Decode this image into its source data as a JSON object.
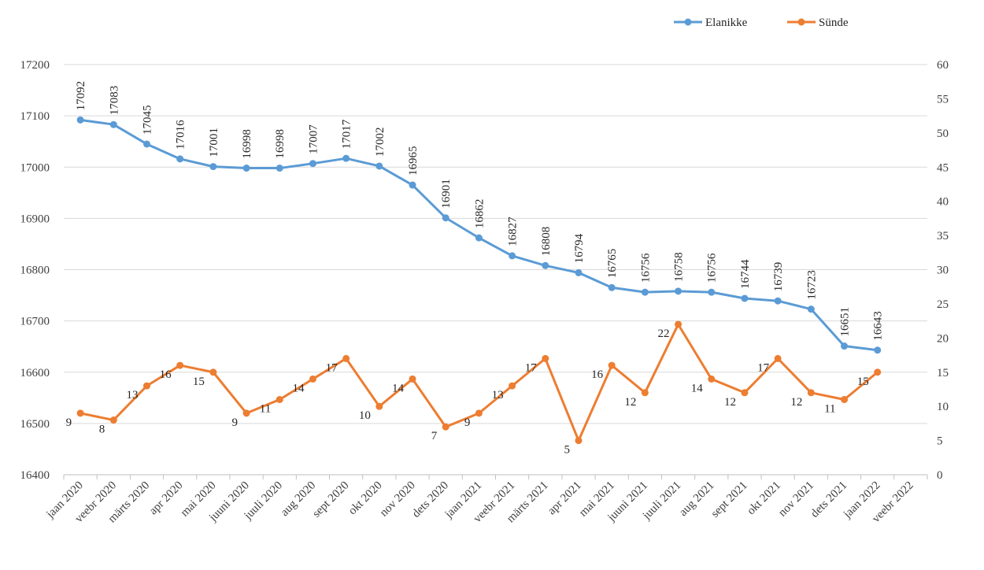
{
  "chart_data": {
    "type": "line",
    "categories": [
      "jaan 2020",
      "veebr 2020",
      "märts 2020",
      "apr 2020",
      "mai 2020",
      "juuni 2020",
      "juuli 2020",
      "aug 2020",
      "sept 2020",
      "okt 2020",
      "nov 2020",
      "dets 2020",
      "jaan 2021",
      "veebr 2021",
      "märts 2021",
      "apr 2021",
      "mai 2021",
      "juuni 2021",
      "juuli 2021",
      "aug 2021",
      "sept 2021",
      "okt 2021",
      "nov 2021",
      "dets 2021",
      "jaan 2022",
      "veebr 2022"
    ],
    "series": [
      {
        "name": "Elanikke",
        "axis": "left",
        "color": "#5b9bd5",
        "values": [
          17092,
          17083,
          17045,
          17016,
          17001,
          16998,
          16998,
          17007,
          17017,
          17002,
          16965,
          16901,
          16862,
          16827,
          16808,
          16794,
          16765,
          16756,
          16758,
          16756,
          16744,
          16739,
          16723,
          16651,
          16643,
          null
        ]
      },
      {
        "name": "Sünde",
        "axis": "right",
        "color": "#ed7d31",
        "values": [
          9,
          8,
          13,
          16,
          15,
          9,
          11,
          14,
          17,
          10,
          14,
          7,
          9,
          13,
          17,
          5,
          16,
          12,
          22,
          14,
          12,
          17,
          12,
          11,
          15,
          null
        ]
      }
    ],
    "y_left": {
      "min": 16400,
      "max": 17200,
      "step": 100
    },
    "y_right": {
      "min": 0,
      "max": 60,
      "step": 5
    },
    "grid": true,
    "legend_position": "top-right",
    "title": "",
    "xlabel": "",
    "ylabel": ""
  }
}
